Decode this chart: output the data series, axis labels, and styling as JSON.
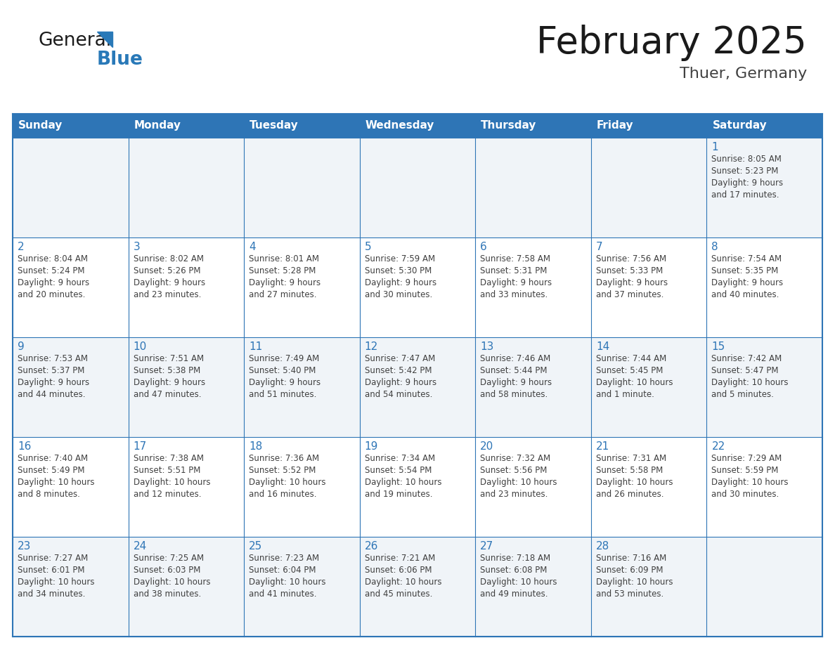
{
  "title": "February 2025",
  "subtitle": "Thuer, Germany",
  "days_of_week": [
    "Sunday",
    "Monday",
    "Tuesday",
    "Wednesday",
    "Thursday",
    "Friday",
    "Saturday"
  ],
  "header_bg": "#2E75B6",
  "header_text_color": "#FFFFFF",
  "border_color": "#2E75B6",
  "title_color": "#1a1a1a",
  "subtitle_color": "#404040",
  "day_num_color": "#2E75B6",
  "cell_text_color": "#404040",
  "logo_general_color": "#1a1a1a",
  "logo_blue_color": "#2979B8",
  "row_bg_even": "#F0F4F8",
  "row_bg_odd": "#FFFFFF",
  "weeks": [
    [
      {
        "day": null,
        "info": null
      },
      {
        "day": null,
        "info": null
      },
      {
        "day": null,
        "info": null
      },
      {
        "day": null,
        "info": null
      },
      {
        "day": null,
        "info": null
      },
      {
        "day": null,
        "info": null
      },
      {
        "day": 1,
        "info": "Sunrise: 8:05 AM\nSunset: 5:23 PM\nDaylight: 9 hours\nand 17 minutes."
      }
    ],
    [
      {
        "day": 2,
        "info": "Sunrise: 8:04 AM\nSunset: 5:24 PM\nDaylight: 9 hours\nand 20 minutes."
      },
      {
        "day": 3,
        "info": "Sunrise: 8:02 AM\nSunset: 5:26 PM\nDaylight: 9 hours\nand 23 minutes."
      },
      {
        "day": 4,
        "info": "Sunrise: 8:01 AM\nSunset: 5:28 PM\nDaylight: 9 hours\nand 27 minutes."
      },
      {
        "day": 5,
        "info": "Sunrise: 7:59 AM\nSunset: 5:30 PM\nDaylight: 9 hours\nand 30 minutes."
      },
      {
        "day": 6,
        "info": "Sunrise: 7:58 AM\nSunset: 5:31 PM\nDaylight: 9 hours\nand 33 minutes."
      },
      {
        "day": 7,
        "info": "Sunrise: 7:56 AM\nSunset: 5:33 PM\nDaylight: 9 hours\nand 37 minutes."
      },
      {
        "day": 8,
        "info": "Sunrise: 7:54 AM\nSunset: 5:35 PM\nDaylight: 9 hours\nand 40 minutes."
      }
    ],
    [
      {
        "day": 9,
        "info": "Sunrise: 7:53 AM\nSunset: 5:37 PM\nDaylight: 9 hours\nand 44 minutes."
      },
      {
        "day": 10,
        "info": "Sunrise: 7:51 AM\nSunset: 5:38 PM\nDaylight: 9 hours\nand 47 minutes."
      },
      {
        "day": 11,
        "info": "Sunrise: 7:49 AM\nSunset: 5:40 PM\nDaylight: 9 hours\nand 51 minutes."
      },
      {
        "day": 12,
        "info": "Sunrise: 7:47 AM\nSunset: 5:42 PM\nDaylight: 9 hours\nand 54 minutes."
      },
      {
        "day": 13,
        "info": "Sunrise: 7:46 AM\nSunset: 5:44 PM\nDaylight: 9 hours\nand 58 minutes."
      },
      {
        "day": 14,
        "info": "Sunrise: 7:44 AM\nSunset: 5:45 PM\nDaylight: 10 hours\nand 1 minute."
      },
      {
        "day": 15,
        "info": "Sunrise: 7:42 AM\nSunset: 5:47 PM\nDaylight: 10 hours\nand 5 minutes."
      }
    ],
    [
      {
        "day": 16,
        "info": "Sunrise: 7:40 AM\nSunset: 5:49 PM\nDaylight: 10 hours\nand 8 minutes."
      },
      {
        "day": 17,
        "info": "Sunrise: 7:38 AM\nSunset: 5:51 PM\nDaylight: 10 hours\nand 12 minutes."
      },
      {
        "day": 18,
        "info": "Sunrise: 7:36 AM\nSunset: 5:52 PM\nDaylight: 10 hours\nand 16 minutes."
      },
      {
        "day": 19,
        "info": "Sunrise: 7:34 AM\nSunset: 5:54 PM\nDaylight: 10 hours\nand 19 minutes."
      },
      {
        "day": 20,
        "info": "Sunrise: 7:32 AM\nSunset: 5:56 PM\nDaylight: 10 hours\nand 23 minutes."
      },
      {
        "day": 21,
        "info": "Sunrise: 7:31 AM\nSunset: 5:58 PM\nDaylight: 10 hours\nand 26 minutes."
      },
      {
        "day": 22,
        "info": "Sunrise: 7:29 AM\nSunset: 5:59 PM\nDaylight: 10 hours\nand 30 minutes."
      }
    ],
    [
      {
        "day": 23,
        "info": "Sunrise: 7:27 AM\nSunset: 6:01 PM\nDaylight: 10 hours\nand 34 minutes."
      },
      {
        "day": 24,
        "info": "Sunrise: 7:25 AM\nSunset: 6:03 PM\nDaylight: 10 hours\nand 38 minutes."
      },
      {
        "day": 25,
        "info": "Sunrise: 7:23 AM\nSunset: 6:04 PM\nDaylight: 10 hours\nand 41 minutes."
      },
      {
        "day": 26,
        "info": "Sunrise: 7:21 AM\nSunset: 6:06 PM\nDaylight: 10 hours\nand 45 minutes."
      },
      {
        "day": 27,
        "info": "Sunrise: 7:18 AM\nSunset: 6:08 PM\nDaylight: 10 hours\nand 49 minutes."
      },
      {
        "day": 28,
        "info": "Sunrise: 7:16 AM\nSunset: 6:09 PM\nDaylight: 10 hours\nand 53 minutes."
      },
      {
        "day": null,
        "info": null
      }
    ]
  ]
}
